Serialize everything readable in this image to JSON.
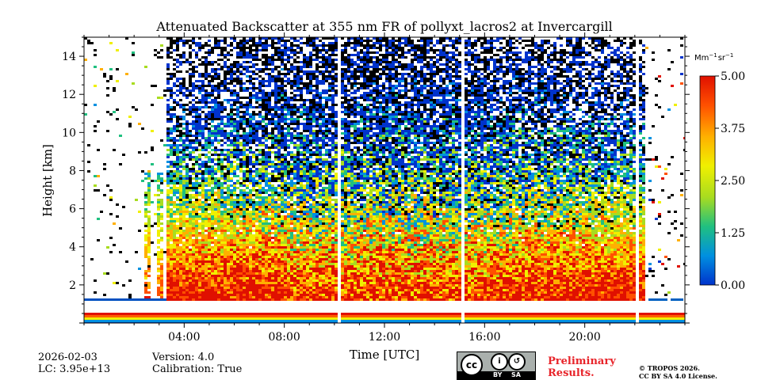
{
  "chart_data": {
    "type": "heatmap",
    "title": "Attenuated Backscatter at 355 nm FR of pollyxt_lacros2 at Invercargill",
    "xlabel": "Time [UTC]",
    "ylabel": "Height [km]",
    "x_ticks": [
      "04:00",
      "08:00",
      "12:00",
      "16:00",
      "20:00"
    ],
    "x_tick_hours": [
      4,
      8,
      12,
      16,
      20
    ],
    "x_range_hours": [
      0,
      24
    ],
    "y_ticks": [
      "2",
      "4",
      "6",
      "8",
      "10",
      "12",
      "14"
    ],
    "y_tick_values": [
      2,
      4,
      6,
      8,
      10,
      12,
      14
    ],
    "y_range_km": [
      0,
      15
    ],
    "colorbar": {
      "unit_label": "Mm",
      "unit_exp1": "−1",
      "unit_mid": "sr",
      "unit_exp2": "−1",
      "ticks": [
        "0.00",
        "1.25",
        "2.50",
        "3.75",
        "5.00"
      ],
      "tick_values": [
        0,
        1.25,
        2.5,
        3.75,
        5
      ],
      "range": [
        0,
        5
      ],
      "colormap": [
        "#0033cc",
        "#0090e0",
        "#20c080",
        "#a8dc20",
        "#f0f000",
        "#ffb000",
        "#ff5000",
        "#e01000"
      ]
    },
    "data_gaps_hours": [
      10.1,
      15.1,
      22.05
    ],
    "cloud_base_km": 1.2,
    "profile_end_hour": 22.3
  },
  "meta": {
    "date": "2026-02-03",
    "lc": "LC: 3.95e+13",
    "version": "Version: 4.0",
    "calibration": "Calibration: True"
  },
  "footer": {
    "cc_by": "BY",
    "cc_sa": "SA",
    "cc_main": "cc",
    "preliminary_line1": "Preliminary",
    "preliminary_line2": "Results.",
    "license_line1": "© TROPOS 2026.",
    "license_line2": "CC BY SA 4.0 License."
  }
}
